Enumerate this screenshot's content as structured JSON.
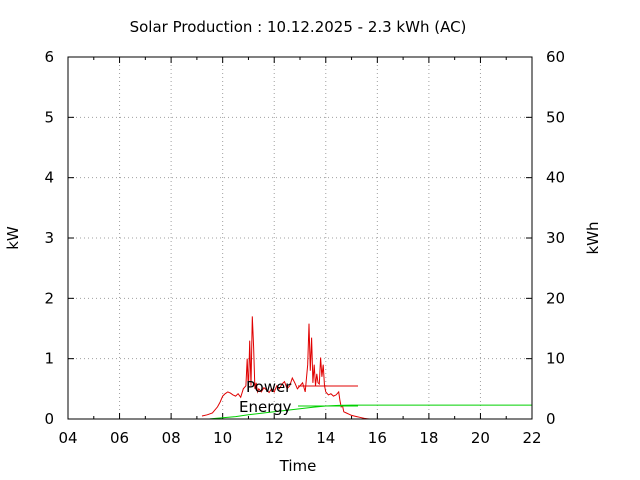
{
  "chart_data": {
    "type": "line",
    "title": "Solar Production : 10.12.2025 - 2.3 kWh (AC)",
    "xlabel": "Time",
    "ylabel": "kW",
    "y2label": "kWh",
    "xlim": [
      4,
      22
    ],
    "ylim": [
      0,
      6
    ],
    "y2lim": [
      0,
      60
    ],
    "grid": true,
    "x_ticks": [
      "04",
      "06",
      "08",
      "10",
      "12",
      "14",
      "16",
      "18",
      "20",
      "22"
    ],
    "y_ticks": [
      "0",
      "1",
      "2",
      "3",
      "4",
      "5",
      "6"
    ],
    "y2_ticks": [
      "0",
      "10",
      "20",
      "30",
      "40",
      "50",
      "60"
    ],
    "legend": "inside",
    "series": [
      {
        "name": "Power",
        "axis": "y",
        "color": "#e00000",
        "x": [
          9.2,
          9.4,
          9.6,
          9.8,
          9.9,
          10.0,
          10.1,
          10.2,
          10.3,
          10.4,
          10.5,
          10.6,
          10.7,
          10.8,
          10.9,
          10.95,
          11.0,
          11.05,
          11.1,
          11.15,
          11.2,
          11.25,
          11.3,
          11.35,
          11.4,
          11.5,
          11.6,
          11.7,
          11.8,
          11.9,
          12.0,
          12.1,
          12.2,
          12.3,
          12.4,
          12.5,
          12.6,
          12.7,
          12.8,
          12.9,
          13.0,
          13.1,
          13.2,
          13.3,
          13.35,
          13.4,
          13.45,
          13.5,
          13.55,
          13.6,
          13.65,
          13.7,
          13.75,
          13.8,
          13.85,
          13.9,
          13.95,
          14.0,
          14.1,
          14.2,
          14.3,
          14.4,
          14.5,
          14.55,
          14.6,
          14.65,
          14.7,
          14.8,
          14.9,
          15.0,
          15.1,
          15.2,
          15.3,
          15.4,
          15.5,
          15.6,
          15.7
        ],
        "y": [
          0.05,
          0.07,
          0.1,
          0.2,
          0.28,
          0.38,
          0.42,
          0.45,
          0.43,
          0.4,
          0.38,
          0.42,
          0.36,
          0.5,
          0.55,
          1.0,
          0.45,
          1.3,
          0.55,
          1.7,
          1.2,
          0.5,
          0.6,
          0.45,
          0.5,
          0.45,
          0.52,
          0.48,
          0.44,
          0.5,
          0.45,
          0.55,
          0.5,
          0.58,
          0.62,
          0.5,
          0.55,
          0.68,
          0.6,
          0.5,
          0.55,
          0.6,
          0.45,
          0.9,
          1.58,
          0.8,
          1.35,
          0.6,
          0.9,
          0.55,
          0.75,
          0.6,
          0.58,
          1.02,
          0.7,
          0.9,
          0.55,
          0.45,
          0.4,
          0.42,
          0.38,
          0.4,
          0.45,
          0.3,
          0.2,
          0.22,
          0.12,
          0.1,
          0.08,
          0.06,
          0.05,
          0.04,
          0.03,
          0.02,
          0.01,
          0.005,
          0.0
        ]
      },
      {
        "name": "Energy",
        "axis": "y2",
        "color": "#00d000",
        "x": [
          9.2,
          9.5,
          10.0,
          10.5,
          11.0,
          11.5,
          12.0,
          12.5,
          13.0,
          13.5,
          14.0,
          14.5,
          15.0,
          15.5,
          16.0,
          17.0,
          18.0,
          19.0,
          20.0,
          21.0,
          22.0
        ],
        "y": [
          0.0,
          0.01,
          0.2,
          0.4,
          0.7,
          0.95,
          1.2,
          1.45,
          1.7,
          1.95,
          2.15,
          2.25,
          2.3,
          2.3,
          2.3,
          2.3,
          2.3,
          2.3,
          2.3,
          2.3,
          2.3
        ]
      }
    ]
  }
}
